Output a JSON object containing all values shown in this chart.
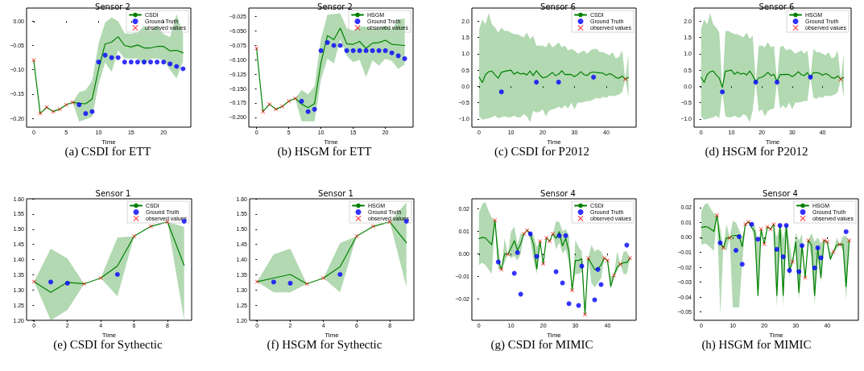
{
  "chart_data": [
    {
      "type": "line",
      "title": "Sensor 2",
      "xlabel": "Time",
      "annotations": [
        "(a) CSDI for ETT"
      ],
      "legend": "top right",
      "xlim": [
        -1.1,
        24.2
      ],
      "xticks": [
        0,
        5,
        10,
        15,
        20
      ],
      "ylim": [
        -0.218,
        0.027
      ],
      "yticks": [
        {
          "value": -0.2,
          "label": "−0.20"
        },
        {
          "value": -0.15,
          "label": "−0.15"
        },
        {
          "value": -0.1,
          "label": "−0.10"
        },
        {
          "value": -0.05,
          "label": "−0.05"
        },
        {
          "value": 0,
          "label": "0.00"
        }
      ],
      "series": [
        {
          "name": "CSDI",
          "type": "line",
          "marker": "none",
          "color": "#008000",
          "x": [
            0,
            1,
            2,
            3,
            4,
            5,
            6,
            7,
            8,
            9,
            10,
            11,
            12,
            13,
            14,
            15,
            16,
            17,
            18,
            19,
            20,
            21,
            22,
            23
          ],
          "values": [
            -0.08,
            -0.19,
            -0.177,
            -0.186,
            -0.181,
            -0.172,
            -0.167,
            -0.169,
            -0.17,
            -0.16,
            -0.098,
            -0.047,
            -0.043,
            -0.032,
            -0.05,
            -0.053,
            -0.049,
            -0.055,
            -0.055,
            -0.052,
            -0.052,
            -0.061,
            -0.06,
            -0.065
          ],
          "upper": [
            -0.08,
            -0.19,
            -0.177,
            -0.186,
            -0.181,
            -0.172,
            -0.167,
            -0.146,
            -0.142,
            -0.123,
            -0.045,
            -0.003,
            0.008,
            0.0,
            -0.025,
            -0.026,
            -0.023,
            -0.01,
            -0.02,
            -0.008,
            -0.027,
            -0.033,
            0.014,
            -0.025
          ],
          "lower": [
            -0.08,
            -0.19,
            -0.177,
            -0.186,
            -0.181,
            -0.172,
            -0.167,
            -0.207,
            -0.202,
            -0.197,
            -0.13,
            -0.085,
            -0.104,
            -0.06,
            -0.077,
            -0.077,
            -0.077,
            -0.09,
            -0.077,
            -0.077,
            -0.08,
            -0.1,
            -0.118,
            -0.082
          ]
        },
        {
          "name": "Ground Truth",
          "type": "scatter",
          "marker": "circle",
          "color": "#0000ff",
          "x": [
            7,
            8,
            9,
            10,
            11,
            12,
            13,
            14,
            15,
            16,
            17,
            18,
            19,
            20,
            21,
            22,
            23
          ],
          "values": [
            -0.172,
            -0.19,
            -0.186,
            -0.084,
            -0.07,
            -0.075,
            -0.075,
            -0.084,
            -0.084,
            -0.084,
            -0.084,
            -0.084,
            -0.084,
            -0.084,
            -0.088,
            -0.093,
            -0.098
          ]
        },
        {
          "name": "observed values",
          "type": "scatter",
          "marker": "cross",
          "color": "#ff0000",
          "x": [
            0,
            1,
            2,
            3,
            4,
            5,
            6
          ],
          "values": [
            -0.08,
            -0.19,
            -0.177,
            -0.186,
            -0.181,
            -0.172,
            -0.167
          ]
        }
      ]
    },
    {
      "type": "line",
      "title": "Sensor 2",
      "xlabel": "Time",
      "annotations": [
        "(b) HSGM for ETT"
      ],
      "legend": "top right",
      "xlim": [
        -1.2,
        24.3
      ],
      "xticks": [
        0,
        5,
        10,
        15,
        20
      ],
      "ylim": [
        -0.217,
        -0.01
      ],
      "yticks": [
        {
          "value": -0.2,
          "label": "−0.200"
        },
        {
          "value": -0.175,
          "label": "−0.175"
        },
        {
          "value": -0.15,
          "label": "−0.150"
        },
        {
          "value": -0.125,
          "label": "−0.125"
        },
        {
          "value": -0.1,
          "label": "−0.100"
        },
        {
          "value": -0.075,
          "label": "−0.075"
        },
        {
          "value": -0.05,
          "label": "−0.050"
        },
        {
          "value": -0.025,
          "label": "−0.025"
        }
      ],
      "series": [
        {
          "name": "HSGM",
          "type": "line",
          "marker": "none",
          "color": "#008000",
          "x": [
            0,
            1,
            2,
            3,
            4,
            5,
            6,
            7,
            8,
            9,
            10,
            11,
            12,
            13,
            14,
            15,
            16,
            17,
            18,
            19,
            20,
            21,
            22,
            23
          ],
          "values": [
            -0.08,
            -0.19,
            -0.177,
            -0.186,
            -0.181,
            -0.172,
            -0.167,
            -0.177,
            -0.183,
            -0.176,
            -0.105,
            -0.058,
            -0.065,
            -0.045,
            -0.072,
            -0.073,
            -0.068,
            -0.08,
            -0.071,
            -0.07,
            -0.066,
            -0.073,
            -0.074,
            -0.075
          ],
          "upper": [
            -0.08,
            -0.19,
            -0.177,
            -0.186,
            -0.181,
            -0.172,
            -0.167,
            -0.152,
            -0.16,
            -0.146,
            -0.063,
            -0.022,
            -0.02,
            -0.019,
            -0.045,
            -0.049,
            -0.042,
            -0.042,
            -0.047,
            -0.045,
            -0.04,
            -0.047,
            -0.03,
            -0.028
          ],
          "lower": [
            -0.08,
            -0.19,
            -0.177,
            -0.186,
            -0.181,
            -0.172,
            -0.167,
            -0.207,
            -0.207,
            -0.207,
            -0.135,
            -0.098,
            -0.106,
            -0.065,
            -0.093,
            -0.104,
            -0.1,
            -0.13,
            -0.101,
            -0.11,
            -0.098,
            -0.102,
            -0.116,
            -0.108
          ]
        },
        {
          "name": "Ground Truth",
          "type": "scatter",
          "marker": "circle",
          "color": "#0000ff",
          "x": [
            7,
            8,
            9,
            10,
            11,
            12,
            13,
            14,
            15,
            16,
            17,
            18,
            19,
            20,
            21,
            22,
            23
          ],
          "values": [
            -0.172,
            -0.19,
            -0.186,
            -0.084,
            -0.07,
            -0.075,
            -0.075,
            -0.084,
            -0.084,
            -0.084,
            -0.084,
            -0.084,
            -0.084,
            -0.084,
            -0.088,
            -0.093,
            -0.098
          ]
        },
        {
          "name": "observed values",
          "type": "scatter",
          "marker": "cross",
          "color": "#ff0000",
          "x": [
            0,
            1,
            2,
            3,
            4,
            5,
            6
          ],
          "values": [
            -0.08,
            -0.19,
            -0.177,
            -0.186,
            -0.181,
            -0.172,
            -0.167
          ]
        }
      ]
    },
    {
      "type": "line",
      "title": "Sensor 6",
      "xlabel": "Time",
      "annotations": [
        "(c) CSDI for P2012"
      ],
      "legend": "top right",
      "xlim": [
        -2.3,
        49.4
      ],
      "xticks": [
        0,
        10,
        20,
        30,
        40
      ],
      "ylim": [
        -1.25,
        2.4
      ],
      "yticks": [
        {
          "value": -1,
          "label": "−1.0"
        },
        {
          "value": -0.5,
          "label": "−0.5"
        },
        {
          "value": 0,
          "label": "0.0"
        },
        {
          "value": 0.5,
          "label": "0.5"
        },
        {
          "value": 1,
          "label": "1.0"
        },
        {
          "value": 1.5,
          "label": "1.5"
        },
        {
          "value": 2,
          "label": "2.0"
        }
      ],
      "series": [
        {
          "name": "CSDI",
          "type": "line",
          "marker": "none",
          "color": "#008000",
          "x": [
            0,
            1,
            2,
            3,
            4,
            5,
            6,
            7,
            8,
            9,
            10,
            11,
            12,
            13,
            14,
            15,
            16,
            17,
            18,
            19,
            20,
            21,
            22,
            23,
            24,
            25,
            26,
            27,
            28,
            29,
            30,
            31,
            32,
            33,
            34,
            35,
            36,
            37,
            38,
            39,
            40,
            41,
            42,
            43,
            44,
            45,
            46,
            47
          ],
          "values": [
            0.28,
            0.12,
            0.36,
            0.45,
            0.47,
            0.35,
            0.25,
            0.43,
            0.46,
            0.48,
            0.5,
            0.37,
            0.44,
            0.38,
            0.4,
            0.35,
            0.47,
            0.33,
            0.48,
            0.36,
            0.26,
            0.28,
            0.34,
            0.43,
            0.33,
            0.37,
            0.48,
            0.36,
            0.37,
            0.36,
            0.3,
            0.36,
            0.45,
            0.36,
            0.33,
            0.42,
            0.44,
            0.42,
            0.42,
            0.4,
            0.34,
            0.39,
            0.35,
            0.27,
            0.25,
            0.32,
            0.22,
            0.28
          ],
          "upper": [
            1.75,
            2.05,
            1.9,
            2.25,
            1.9,
            1.8,
            1.65,
            1.8,
            1.7,
            1.7,
            1.65,
            1.6,
            1.6,
            1.55,
            1.5,
            1.65,
            1.45,
            1.55,
            1.25,
            1.25,
            1.25,
            1.2,
            1.35,
            1.2,
            1.25,
            1.35,
            1.2,
            1.25,
            1.1,
            1.15,
            1.1,
            1.0,
            1.05,
            1.1,
            1.0,
            1.1,
            1.15,
            1.15,
            1.05,
            1.05,
            1.0,
            0.95,
            1.05,
            0.85,
            0.9,
            1.1,
            0.22,
            0.98
          ],
          "lower": [
            -0.92,
            -1.02,
            -1.0,
            -0.98,
            -0.95,
            -0.9,
            -0.98,
            -0.95,
            -0.92,
            -0.95,
            -0.95,
            -0.9,
            -0.95,
            -0.95,
            -0.85,
            -0.92,
            -1.1,
            -0.75,
            -0.8,
            -0.78,
            -0.7,
            -0.92,
            -0.75,
            -0.7,
            -0.68,
            -0.62,
            -0.68,
            -0.58,
            -0.68,
            -0.5,
            -0.7,
            -0.5,
            -0.5,
            -0.48,
            -0.45,
            -0.45,
            -0.4,
            -0.35,
            -0.38,
            -0.32,
            -0.35,
            -0.28,
            -0.3,
            -0.28,
            -0.25,
            -0.18,
            0.22,
            -0.33
          ]
        },
        {
          "name": "Ground Truth",
          "type": "scatter",
          "marker": "circle",
          "color": "#0000ff",
          "x": [
            7,
            18,
            25,
            36
          ],
          "values": [
            -0.17,
            0.13,
            0.13,
            0.28
          ]
        },
        {
          "name": "observed values",
          "type": "scatter",
          "marker": "cross",
          "color": "#ff0000",
          "x": [
            46
          ],
          "values": [
            0.22
          ]
        }
      ]
    },
    {
      "type": "line",
      "title": "Sensor 6",
      "xlabel": "Time",
      "annotations": [
        "(d) HSGM for P2012"
      ],
      "legend": "top right",
      "xlim": [
        -2.3,
        49.4
      ],
      "xticks": [
        0,
        10,
        20,
        30,
        40
      ],
      "ylim": [
        -1.25,
        2.4
      ],
      "yticks": [
        {
          "value": -1,
          "label": "−1.0"
        },
        {
          "value": -0.5,
          "label": "−0.5"
        },
        {
          "value": 0,
          "label": "0.0"
        },
        {
          "value": 0.5,
          "label": "0.5"
        },
        {
          "value": 1,
          "label": "1.0"
        },
        {
          "value": 1.5,
          "label": "1.5"
        },
        {
          "value": 2,
          "label": "2.0"
        }
      ],
      "series": [
        {
          "name": "HSGM",
          "type": "line",
          "marker": "none",
          "color": "#008000",
          "x": [
            0,
            1,
            2,
            3,
            4,
            5,
            6,
            7,
            8,
            9,
            10,
            11,
            12,
            13,
            14,
            15,
            16,
            17,
            18,
            19,
            20,
            21,
            22,
            23,
            24,
            25,
            26,
            27,
            28,
            29,
            30,
            31,
            32,
            33,
            34,
            35,
            36,
            37,
            38,
            39,
            40,
            41,
            42,
            43,
            44,
            45,
            46,
            47
          ],
          "values": [
            0.28,
            0.12,
            0.36,
            0.45,
            0.47,
            0.35,
            0.25,
            -0.03,
            0.46,
            0.48,
            0.5,
            0.37,
            0.44,
            0.38,
            0.4,
            0.35,
            0.47,
            0.33,
            0.13,
            0.26,
            0.28,
            0.34,
            0.43,
            0.33,
            0.37,
            0.15,
            0.36,
            0.36,
            0.37,
            0.36,
            0.3,
            0.36,
            0.45,
            0.36,
            0.33,
            0.42,
            0.28,
            0.42,
            0.42,
            0.4,
            0.34,
            0.39,
            0.35,
            0.27,
            0.25,
            0.32,
            0.22,
            0.28
          ],
          "upper": [
            1.75,
            2.05,
            1.9,
            2.25,
            1.9,
            1.8,
            1.65,
            -0.12,
            1.7,
            1.7,
            1.65,
            1.6,
            1.6,
            1.55,
            1.5,
            1.65,
            1.45,
            1.55,
            0.15,
            1.25,
            1.25,
            1.2,
            1.35,
            1.2,
            1.25,
            0.16,
            1.2,
            1.25,
            1.1,
            1.15,
            1.1,
            1.0,
            1.05,
            1.1,
            1.0,
            1.1,
            0.3,
            1.15,
            1.05,
            1.05,
            1.0,
            0.95,
            1.05,
            0.85,
            0.9,
            1.1,
            0.22,
            0.98
          ],
          "lower": [
            -0.92,
            -1.02,
            -1.0,
            -0.98,
            -0.95,
            -0.9,
            -0.98,
            -0.17,
            -0.92,
            -0.95,
            -0.95,
            -0.9,
            -0.95,
            -0.95,
            -0.85,
            -0.92,
            -1.1,
            -0.75,
            0.12,
            -0.78,
            -0.7,
            -0.92,
            -0.75,
            -0.7,
            -0.68,
            0.12,
            -0.68,
            -0.58,
            -0.68,
            -0.5,
            -0.7,
            -0.5,
            -0.5,
            -0.48,
            -0.45,
            -0.45,
            0.27,
            -0.35,
            -0.38,
            -0.32,
            -0.35,
            -0.28,
            -0.3,
            -0.28,
            -0.25,
            -0.18,
            0.22,
            -0.33
          ]
        },
        {
          "name": "Ground Truth",
          "type": "scatter",
          "marker": "circle",
          "color": "#0000ff",
          "x": [
            7,
            18,
            25,
            36
          ],
          "values": [
            -0.17,
            0.13,
            0.13,
            0.28
          ]
        },
        {
          "name": "observed values",
          "type": "scatter",
          "marker": "cross",
          "color": "#ff0000",
          "x": [
            46
          ],
          "values": [
            0.22
          ]
        }
      ]
    },
    {
      "type": "line",
      "title": "Sensor 1",
      "xlabel": "Time",
      "annotations": [
        "(e) CSDI for Sythectic"
      ],
      "legend": "top right",
      "xlim": [
        -0.45,
        9.45
      ],
      "xticks": [
        0,
        2,
        4,
        6,
        8
      ],
      "ylim": [
        1.2,
        1.6
      ],
      "yticks": [
        {
          "value": 1.2,
          "label": "1.20"
        },
        {
          "value": 1.25,
          "label": "1.25"
        },
        {
          "value": 1.3,
          "label": "1.30"
        },
        {
          "value": 1.35,
          "label": "1.35"
        },
        {
          "value": 1.4,
          "label": "1.40"
        },
        {
          "value": 1.45,
          "label": "1.45"
        },
        {
          "value": 1.5,
          "label": "1.50"
        },
        {
          "value": 1.55,
          "label": "1.55"
        },
        {
          "value": 1.6,
          "label": "1.60"
        }
      ],
      "series": [
        {
          "name": "CSDI",
          "type": "line",
          "marker": "none",
          "color": "#008000",
          "x": [
            0,
            1,
            2,
            3,
            4,
            5,
            6,
            7,
            8,
            9
          ],
          "values": [
            1.327,
            1.292,
            1.325,
            1.32,
            1.339,
            1.379,
            1.477,
            1.509,
            1.524,
            1.381
          ],
          "upper": [
            1.327,
            1.436,
            1.403,
            1.32,
            1.339,
            1.472,
            1.477,
            1.509,
            1.524,
            1.507
          ],
          "lower": [
            1.327,
            1.2,
            1.234,
            1.32,
            1.339,
            1.279,
            1.477,
            1.509,
            1.524,
            1.2
          ]
        },
        {
          "name": "Ground Truth",
          "type": "scatter",
          "marker": "circle",
          "color": "#0000ff",
          "x": [
            1,
            2,
            5,
            9
          ],
          "values": [
            1.326,
            1.322,
            1.351,
            1.526
          ]
        },
        {
          "name": "observed values",
          "type": "scatter",
          "marker": "cross",
          "color": "#ff0000",
          "x": [
            0,
            3,
            4,
            6,
            7,
            8
          ],
          "values": [
            1.327,
            1.32,
            1.339,
            1.477,
            1.509,
            1.524
          ]
        }
      ]
    },
    {
      "type": "line",
      "title": "Sensor 1",
      "xlabel": "Time",
      "annotations": [
        "(f) HSGM for Sythectic"
      ],
      "legend": "top right",
      "xlim": [
        -0.45,
        9.45
      ],
      "xticks": [
        0,
        2,
        4,
        6,
        8
      ],
      "ylim": [
        1.2,
        1.6
      ],
      "yticks": [
        {
          "value": 1.2,
          "label": "1.20"
        },
        {
          "value": 1.25,
          "label": "1.25"
        },
        {
          "value": 1.3,
          "label": "1.30"
        },
        {
          "value": 1.35,
          "label": "1.35"
        },
        {
          "value": 1.4,
          "label": "1.40"
        },
        {
          "value": 1.45,
          "label": "1.45"
        },
        {
          "value": 1.5,
          "label": "1.50"
        },
        {
          "value": 1.55,
          "label": "1.55"
        },
        {
          "value": 1.6,
          "label": "1.60"
        }
      ],
      "series": [
        {
          "name": "HSGM",
          "type": "line",
          "marker": "none",
          "color": "#008000",
          "x": [
            0,
            1,
            2,
            3,
            4,
            5,
            6,
            7,
            8,
            9
          ],
          "values": [
            1.327,
            1.339,
            1.351,
            1.32,
            1.339,
            1.376,
            1.477,
            1.509,
            1.524,
            1.455
          ],
          "upper": [
            1.327,
            1.417,
            1.436,
            1.32,
            1.339,
            1.454,
            1.477,
            1.509,
            1.524,
            1.588
          ],
          "lower": [
            1.327,
            1.292,
            1.292,
            1.32,
            1.339,
            1.292,
            1.477,
            1.509,
            1.524,
            1.309
          ]
        },
        {
          "name": "Ground Truth",
          "type": "scatter",
          "marker": "circle",
          "color": "#0000ff",
          "x": [
            1,
            2,
            5,
            9
          ],
          "values": [
            1.326,
            1.322,
            1.351,
            1.526
          ]
        },
        {
          "name": "observed values",
          "type": "scatter",
          "marker": "cross",
          "color": "#ff0000",
          "x": [
            0,
            3,
            4,
            6,
            7,
            8
          ],
          "values": [
            1.327,
            1.32,
            1.339,
            1.477,
            1.509,
            1.524
          ]
        }
      ]
    },
    {
      "type": "line",
      "title": "Sensor 4",
      "xlabel": "Time",
      "annotations": [
        "(g) CSDI for MIMIC"
      ],
      "legend": "top right",
      "xlim": [
        -2.2,
        48.9
      ],
      "xticks": [
        0,
        10,
        20,
        30,
        40
      ],
      "ylim": [
        -0.0296,
        0.0244
      ],
      "yticks": [
        {
          "value": -0.02,
          "label": "−0.02"
        },
        {
          "value": -0.01,
          "label": "−0.01"
        },
        {
          "value": 0,
          "label": "0.00"
        },
        {
          "value": 0.01,
          "label": "0.01"
        },
        {
          "value": 0.02,
          "label": "0.02"
        }
      ],
      "series": [
        {
          "name": "CSDI",
          "type": "line",
          "marker": "none",
          "color": "#008000",
          "x": [
            0,
            1,
            2,
            3,
            4,
            5,
            6,
            7,
            8,
            9,
            10,
            11,
            12,
            13,
            14,
            15,
            16,
            17,
            18,
            19,
            20,
            21,
            22,
            23,
            24,
            25,
            26,
            27,
            28,
            29,
            30,
            31,
            32,
            33,
            34,
            35,
            36,
            37,
            38,
            39,
            40,
            41,
            42,
            43,
            44,
            45,
            46,
            47
          ],
          "values": [
            0.0067,
            0.0072,
            0.007,
            0.0055,
            0.004,
            0.0148,
            -0.003,
            -0.007,
            0.0,
            -0.0003,
            0.0025,
            0.0058,
            0.0015,
            0.0045,
            0.0088,
            0.0104,
            0.0088,
            0.004,
            -0.0068,
            0.0055,
            -0.0045,
            0.0071,
            0.0055,
            0.0088,
            0.0068,
            0.0098,
            0.0035,
            0.0068,
            0.001,
            -0.0163,
            -0.003,
            -0.003,
            -0.0023,
            -0.027,
            -0.002,
            -0.0045,
            -0.007,
            -0.0068,
            -0.005,
            -0.002,
            -0.003,
            -0.0145,
            -0.0097,
            -0.006,
            -0.0047,
            -0.004,
            -0.004,
            -0.002
          ],
          "upper": [
            0.018,
            0.022,
            0.023,
            0.019,
            0.016,
            0.0148,
            0.004,
            -0.007,
            0.007,
            -0.0003,
            0.01,
            0.012,
            0.004,
            0.009,
            0.0088,
            0.0104,
            0.0095,
            0.008,
            0.003,
            0.0055,
            -0.0045,
            0.0071,
            0.0055,
            0.0088,
            0.0145,
            0.014,
            0.01,
            0.011,
            0.008,
            -0.0163,
            0.006,
            0.003,
            0.001,
            -0.027,
            -0.002,
            0.004,
            0.001,
            0.002,
            0.001,
            -0.002,
            -0.003,
            -0.01,
            -0.0097,
            0.001,
            -0.0047,
            0.001,
            0.001,
            -0.002
          ],
          "lower": [
            -0.005,
            -0.004,
            -0.005,
            -0.007,
            -0.009,
            0.0148,
            -0.007,
            -0.007,
            -0.004,
            -0.0003,
            -0.002,
            -0.001,
            -0.003,
            0.0,
            0.0088,
            0.0104,
            0.006,
            -0.003,
            -0.009,
            0.0055,
            -0.0045,
            0.0071,
            0.0055,
            0.0088,
            0.002,
            0.005,
            0.0,
            0.002,
            -0.004,
            -0.0163,
            -0.009,
            -0.009,
            -0.008,
            -0.027,
            -0.002,
            -0.013,
            -0.015,
            -0.013,
            -0.011,
            -0.002,
            -0.003,
            -0.016,
            -0.0097,
            -0.008,
            -0.0047,
            -0.009,
            -0.009,
            -0.002
          ]
        },
        {
          "name": "Ground Truth",
          "type": "scatter",
          "marker": "circle",
          "color": "#0000ff",
          "x": [
            6,
            11,
            12,
            13,
            16,
            18,
            24,
            25,
            26,
            27,
            28,
            31,
            32,
            36,
            37,
            38,
            46
          ],
          "values": [
            -0.0037,
            -0.0087,
            0.0005,
            -0.018,
            0.0088,
            -0.0012,
            -0.008,
            0.008,
            -0.013,
            0.008,
            -0.0222,
            -0.023,
            -0.0055,
            -0.0205,
            -0.007,
            -0.0137,
            0.0038
          ]
        },
        {
          "name": "observed values",
          "type": "scatter",
          "marker": "cross",
          "color": "#ff0000",
          "x": [
            5,
            7,
            9,
            14,
            15,
            19,
            20,
            21,
            22,
            23,
            29,
            33,
            34,
            39,
            40,
            42,
            44,
            47
          ],
          "values": [
            0.0148,
            -0.007,
            -0.0003,
            0.0088,
            0.0104,
            0.0055,
            -0.0045,
            0.0071,
            0.0055,
            0.0088,
            -0.0163,
            -0.027,
            -0.002,
            -0.002,
            -0.003,
            -0.0097,
            -0.0047,
            -0.002
          ]
        }
      ]
    },
    {
      "type": "line",
      "title": "Sensor 4",
      "xlabel": "Time",
      "annotations": [
        "(h) HSGM for MIMIC"
      ],
      "legend": "top right",
      "xlim": [
        -2.3,
        49.9
      ],
      "xticks": [
        0,
        10,
        20,
        30,
        40
      ],
      "ylim": [
        -0.0556,
        0.0259
      ],
      "yticks": [
        {
          "value": -0.05,
          "label": "−0.05"
        },
        {
          "value": -0.04,
          "label": "−0.04"
        },
        {
          "value": -0.03,
          "label": "−0.03"
        },
        {
          "value": -0.02,
          "label": "−0.02"
        },
        {
          "value": -0.01,
          "label": "−0.01"
        },
        {
          "value": 0,
          "label": "0.00"
        },
        {
          "value": 0.01,
          "label": "0.01"
        },
        {
          "value": 0.02,
          "label": "0.02"
        }
      ],
      "series": [
        {
          "name": "HSGM",
          "type": "line",
          "marker": "none",
          "color": "#008000",
          "x": [
            0,
            1,
            2,
            3,
            4,
            5,
            6,
            7,
            8,
            9,
            10,
            11,
            12,
            13,
            14,
            15,
            16,
            17,
            18,
            19,
            20,
            21,
            22,
            23,
            24,
            25,
            26,
            27,
            28,
            29,
            30,
            31,
            32,
            33,
            34,
            35,
            36,
            37,
            38,
            39,
            40,
            41,
            42,
            43,
            44,
            45,
            46,
            47
          ],
          "values": [
            0.0067,
            0.0072,
            0.007,
            0.0055,
            0.004,
            0.0148,
            -0.0037,
            -0.007,
            -0.0003,
            -0.0003,
            0.0012,
            0.0013,
            0.001,
            -0.0063,
            0.0088,
            0.0104,
            0.0065,
            0.004,
            -0.039,
            0.0055,
            -0.0045,
            0.0071,
            0.0055,
            0.0088,
            -0.039,
            0.008,
            -0.039,
            0.008,
            -0.0222,
            -0.0163,
            -0.003,
            -0.037,
            -0.0055,
            -0.027,
            -0.002,
            -0.005,
            -0.039,
            -0.007,
            -0.027,
            -0.002,
            -0.003,
            -0.0145,
            -0.0097,
            -0.005,
            -0.0047,
            -0.0045,
            -0.033,
            -0.002
          ],
          "upper": [
            0.018,
            0.022,
            0.023,
            0.019,
            0.016,
            0.0148,
            0.006,
            -0.007,
            0.009,
            -0.0003,
            0.011,
            0.01,
            0.005,
            0.0,
            0.0088,
            0.0104,
            0.0095,
            0.008,
            -0.003,
            0.0055,
            -0.0045,
            0.0071,
            0.0055,
            0.0088,
            0.0,
            0.01,
            -0.001,
            0.01,
            -0.004,
            -0.0163,
            0.003,
            -0.002,
            0.002,
            -0.027,
            -0.002,
            0.003,
            -0.003,
            0.0,
            -0.004,
            -0.002,
            -0.003,
            -0.01,
            -0.0097,
            0.0,
            -0.0047,
            0.001,
            0.001,
            -0.002
          ],
          "lower": [
            -0.005,
            -0.004,
            -0.005,
            -0.007,
            -0.009,
            0.0148,
            -0.052,
            -0.007,
            -0.009,
            -0.0003,
            -0.047,
            -0.047,
            -0.047,
            -0.017,
            0.0088,
            0.0104,
            0.006,
            -0.003,
            -0.041,
            0.0055,
            -0.0045,
            0.0071,
            0.0055,
            0.0088,
            -0.047,
            0.004,
            -0.046,
            0.004,
            -0.027,
            -0.0163,
            -0.009,
            -0.042,
            -0.009,
            -0.027,
            -0.002,
            -0.013,
            -0.045,
            -0.013,
            -0.03,
            -0.002,
            -0.003,
            -0.016,
            -0.0097,
            -0.008,
            -0.0047,
            -0.009,
            -0.042,
            -0.002
          ]
        },
        {
          "name": "Ground Truth",
          "type": "scatter",
          "marker": "circle",
          "color": "#0000ff",
          "x": [
            6,
            11,
            12,
            13,
            16,
            18,
            24,
            25,
            26,
            27,
            28,
            31,
            32,
            36,
            37,
            38,
            46
          ],
          "values": [
            -0.0037,
            -0.0087,
            0.0005,
            -0.018,
            0.0088,
            -0.0012,
            -0.008,
            0.008,
            -0.013,
            0.008,
            -0.0222,
            -0.023,
            -0.0055,
            -0.0205,
            -0.007,
            -0.0137,
            0.0038
          ]
        },
        {
          "name": "observed values",
          "type": "scatter",
          "marker": "cross",
          "color": "#ff0000",
          "x": [
            5,
            7,
            9,
            14,
            15,
            19,
            20,
            21,
            22,
            23,
            29,
            33,
            34,
            39,
            40,
            42,
            44,
            47
          ],
          "values": [
            0.0148,
            -0.007,
            -0.0003,
            0.0088,
            0.0104,
            0.0055,
            -0.0045,
            0.0071,
            0.0055,
            0.0088,
            -0.0163,
            -0.027,
            -0.002,
            -0.002,
            -0.003,
            -0.0097,
            -0.0047,
            -0.002
          ]
        }
      ]
    }
  ]
}
